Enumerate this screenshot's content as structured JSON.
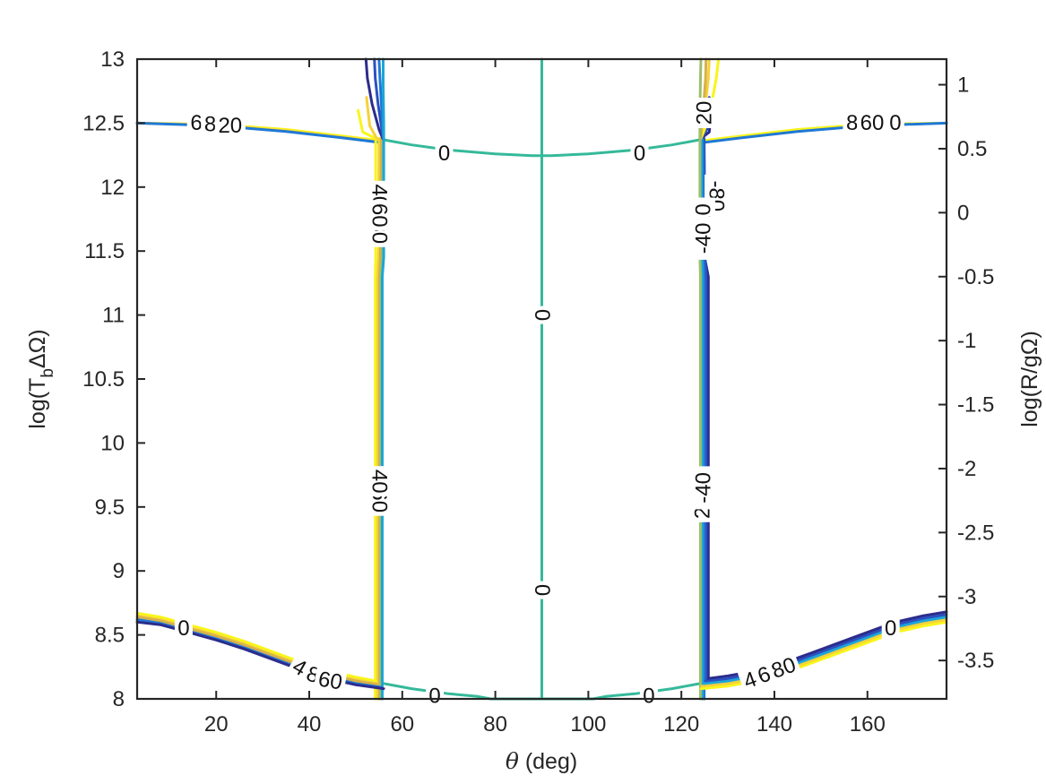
{
  "chart_data": {
    "type": "contour",
    "title": "",
    "xlabel": {
      "symbol": "θ",
      "rest": " (deg)"
    },
    "ylabel_left": {
      "pre": "log(T",
      "sub": "b",
      "post": "ΔΩ)"
    },
    "ylabel_right": "log(R/gΩ)",
    "xlim": [
      3,
      177
    ],
    "ylim_left": [
      8,
      13
    ],
    "ylim_right": [
      -3.8,
      1.2
    ],
    "x_ticks": [
      "20",
      "40",
      "60",
      "80",
      "100",
      "120",
      "140",
      "160"
    ],
    "x_tick_values": [
      20,
      40,
      60,
      80,
      100,
      120,
      140,
      160
    ],
    "y_left_ticks": [
      "8",
      "8.5",
      "9",
      "9.5",
      "10",
      "10.5",
      "11",
      "11.5",
      "12",
      "12.5",
      "13"
    ],
    "y_left_tick_values": [
      8,
      8.5,
      9,
      9.5,
      10,
      10.5,
      11,
      11.5,
      12,
      12.5,
      13
    ],
    "y_right_ticks": [
      "-3.5",
      "-3",
      "-2.5",
      "-2",
      "-1.5",
      "-1",
      "-0.5",
      "0",
      "0.5",
      "1"
    ],
    "y_right_tick_values": [
      -3.5,
      -3,
      -2.5,
      -2,
      -1.5,
      -1,
      -0.5,
      0,
      0.5,
      1
    ],
    "grid": false,
    "colors": {
      "level_neg80": "#2c2c8c",
      "level_neg60": "#2b50c0",
      "level_neg40": "#1f78d6",
      "level_neg20": "#1ba6d8",
      "level_0": "#35b99a",
      "level_20": "#9cbf6a",
      "level_40": "#d8b14a",
      "level_60": "#f5d23a",
      "level_80": "#f9f51a"
    },
    "series": [
      {
        "level": 0,
        "color_key": "level_0",
        "x": [
          90,
          90
        ],
        "y": [
          8,
          13
        ]
      },
      {
        "level": 0,
        "color_key": "level_0",
        "x": [
          56,
          62,
          70,
          80,
          88,
          92,
          100,
          110,
          118,
          124
        ],
        "y": [
          12.37,
          12.33,
          12.29,
          12.26,
          12.245,
          12.245,
          12.26,
          12.29,
          12.33,
          12.37
        ]
      },
      {
        "level": 0,
        "color_key": "level_0",
        "x": [
          56,
          62,
          70,
          76,
          79,
          101,
          104,
          110,
          118,
          124
        ],
        "y": [
          8.12,
          8.08,
          8.04,
          8.02,
          8.0,
          8.0,
          8.02,
          8.04,
          8.08,
          8.12
        ]
      },
      {
        "level": 80,
        "color_key": "level_80",
        "x": [
          3,
          20,
          35,
          47,
          56
        ],
        "y": [
          12.5,
          12.49,
          12.45,
          12.4,
          12.36
        ]
      },
      {
        "level": 60,
        "color_key": "level_60",
        "x": [
          3,
          20,
          35,
          47,
          56
        ],
        "y": [
          12.5,
          12.485,
          12.44,
          12.39,
          12.35
        ]
      },
      {
        "level": -40,
        "color_key": "level_neg40",
        "x": [
          3,
          20,
          35,
          47,
          56
        ],
        "y": [
          12.5,
          12.48,
          12.435,
          12.385,
          12.345
        ]
      },
      {
        "level": 80,
        "color_key": "level_80",
        "x": [
          124,
          133,
          145,
          160,
          177
        ],
        "y": [
          12.36,
          12.4,
          12.45,
          12.49,
          12.5
        ]
      },
      {
        "level": -40,
        "color_key": "level_neg40",
        "x": [
          124,
          133,
          145,
          160,
          177
        ],
        "y": [
          12.345,
          12.385,
          12.435,
          12.48,
          12.5
        ]
      },
      {
        "level": 80,
        "color_key": "level_80",
        "x": [
          54.2,
          54.2,
          54.3,
          54.3
        ],
        "y": [
          8,
          11.3,
          11.45,
          12.38
        ]
      },
      {
        "level": 60,
        "color_key": "level_60",
        "x": [
          54.7,
          54.7,
          54.9,
          55.0
        ],
        "y": [
          8,
          11.3,
          11.45,
          12.38
        ]
      },
      {
        "level": 40,
        "color_key": "level_40",
        "x": [
          55.1,
          55.1,
          55.3,
          55.5
        ],
        "y": [
          8,
          11.3,
          11.45,
          12.38
        ]
      },
      {
        "level": 20,
        "color_key": "level_20",
        "x": [
          55.4,
          55.4,
          55.7,
          55.9
        ],
        "y": [
          8,
          11.3,
          11.45,
          12.38
        ]
      },
      {
        "level": -20,
        "color_key": "level_neg20",
        "x": [
          55.7,
          55.7,
          56.0,
          56.0
        ],
        "y": [
          8,
          11.3,
          11.45,
          12.38
        ]
      },
      {
        "level": 80,
        "color_key": "level_80",
        "x": [
          54.3,
          51.5,
          50.5
        ],
        "y": [
          12.38,
          12.43,
          12.6
        ]
      },
      {
        "level": 60,
        "color_key": "level_60",
        "x": [
          54.5,
          53.0,
          52.3
        ],
        "y": [
          12.38,
          12.48,
          12.7
        ]
      },
      {
        "level": -80,
        "color_key": "level_neg80",
        "x": [
          55.8,
          55.0,
          53.5,
          52.5,
          52.2
        ],
        "y": [
          12.38,
          12.45,
          12.65,
          12.85,
          13.0
        ]
      },
      {
        "level": -60,
        "color_key": "level_neg60",
        "x": [
          55.9,
          55.6,
          54.8,
          54.2,
          54.0
        ],
        "y": [
          12.38,
          12.45,
          12.65,
          12.85,
          13.0
        ]
      },
      {
        "level": -40,
        "color_key": "level_neg40",
        "x": [
          56.0,
          55.8,
          55.5,
          55.2,
          55.0
        ],
        "y": [
          12.38,
          12.45,
          12.65,
          12.85,
          13.0
        ]
      },
      {
        "level": -20,
        "color_key": "level_neg20",
        "x": [
          56.0,
          56.0,
          55.9,
          55.9
        ],
        "y": [
          12.38,
          12.5,
          12.8,
          13.0
        ]
      },
      {
        "level": -80,
        "color_key": "level_neg80",
        "x": [
          125.8,
          125.8,
          125.0,
          124.2
        ],
        "y": [
          8.15,
          11.3,
          11.45,
          12.38
        ]
      },
      {
        "level": -60,
        "color_key": "level_neg60",
        "x": [
          125.3,
          125.3,
          125.1,
          124.9
        ],
        "y": [
          8.15,
          11.3,
          11.45,
          12.38
        ]
      },
      {
        "level": -40,
        "color_key": "level_neg40",
        "x": [
          124.9,
          124.9,
          124.7,
          124.6
        ],
        "y": [
          8,
          11.3,
          11.45,
          12.38
        ]
      },
      {
        "level": -20,
        "color_key": "level_neg20",
        "x": [
          124.5,
          124.5,
          124.4,
          124.3
        ],
        "y": [
          8,
          11.3,
          11.45,
          12.38
        ]
      },
      {
        "level": 20,
        "color_key": "level_20",
        "x": [
          124.1,
          124.1,
          124.0,
          124.0
        ],
        "y": [
          8,
          11.3,
          11.45,
          12.38
        ]
      },
      {
        "level": -80,
        "color_key": "level_neg80",
        "x": [
          124.2,
          126.0,
          126.5
        ],
        "y": [
          12.38,
          12.43,
          12.6
        ]
      },
      {
        "level": -60,
        "color_key": "level_neg60",
        "x": [
          124.3,
          125.5,
          126.0
        ],
        "y": [
          12.38,
          12.45,
          12.7
        ]
      },
      {
        "level": 80,
        "color_key": "level_80",
        "x": [
          124.2,
          125.0,
          126.5,
          127.5,
          128.0
        ],
        "y": [
          12.38,
          12.45,
          12.65,
          12.85,
          13.0
        ]
      },
      {
        "level": 60,
        "color_key": "level_60",
        "x": [
          124.1,
          124.4,
          125.2,
          125.8,
          126.0
        ],
        "y": [
          12.38,
          12.45,
          12.65,
          12.85,
          13.0
        ]
      },
      {
        "level": 40,
        "color_key": "level_40",
        "x": [
          124.1,
          124.3,
          124.8,
          125.2,
          125.3
        ],
        "y": [
          12.38,
          12.45,
          12.65,
          12.85,
          13.0
        ]
      },
      {
        "level": 20,
        "color_key": "level_20",
        "x": [
          124.0,
          124.0,
          124.1,
          124.2
        ],
        "y": [
          12.38,
          12.6,
          12.85,
          13.0
        ]
      },
      {
        "level": 80,
        "color_key": "level_80",
        "x": [
          3,
          8,
          14,
          20,
          26,
          32,
          38,
          44,
          50,
          54.3
        ],
        "y": [
          8.67,
          8.64,
          8.58,
          8.52,
          8.45,
          8.37,
          8.29,
          8.22,
          8.17,
          8.14
        ]
      },
      {
        "level": 60,
        "color_key": "level_60",
        "x": [
          3,
          8,
          14,
          20,
          26,
          32,
          38,
          44,
          50,
          54.6
        ],
        "y": [
          8.65,
          8.62,
          8.56,
          8.5,
          8.43,
          8.35,
          8.27,
          8.2,
          8.15,
          8.12
        ]
      },
      {
        "level": 40,
        "color_key": "level_40",
        "x": [
          3,
          8,
          14,
          20,
          26,
          32,
          38,
          44,
          50,
          55.0
        ],
        "y": [
          8.64,
          8.61,
          8.55,
          8.49,
          8.42,
          8.34,
          8.26,
          8.19,
          8.14,
          8.11
        ]
      },
      {
        "level": -40,
        "color_key": "level_neg40",
        "x": [
          3,
          8,
          14,
          20,
          26,
          32,
          38,
          44,
          50,
          55.5
        ],
        "y": [
          8.62,
          8.59,
          8.53,
          8.47,
          8.4,
          8.32,
          8.24,
          8.17,
          8.12,
          8.09
        ]
      },
      {
        "level": -80,
        "color_key": "level_neg80",
        "x": [
          3,
          8,
          14,
          20,
          26,
          32,
          38,
          44,
          50,
          56
        ],
        "y": [
          8.6,
          8.58,
          8.52,
          8.46,
          8.39,
          8.31,
          8.23,
          8.16,
          8.11,
          8.08
        ]
      },
      {
        "level": 80,
        "color_key": "level_80",
        "x": [
          124.2,
          130,
          136,
          142,
          148,
          154,
          160,
          166,
          172,
          177
        ],
        "y": [
          8.08,
          8.1,
          8.14,
          8.2,
          8.28,
          8.36,
          8.44,
          8.52,
          8.57,
          8.6
        ]
      },
      {
        "level": 60,
        "color_key": "level_60",
        "x": [
          124.4,
          130,
          136,
          142,
          148,
          154,
          160,
          166,
          172,
          177
        ],
        "y": [
          8.1,
          8.12,
          8.16,
          8.22,
          8.3,
          8.38,
          8.46,
          8.54,
          8.59,
          8.62
        ]
      },
      {
        "level": -20,
        "color_key": "level_neg20",
        "x": [
          124.8,
          130,
          136,
          142,
          148,
          154,
          160,
          166,
          172,
          177
        ],
        "y": [
          8.12,
          8.14,
          8.18,
          8.24,
          8.32,
          8.4,
          8.48,
          8.56,
          8.61,
          8.64
        ]
      },
      {
        "level": -60,
        "color_key": "level_neg60",
        "x": [
          125.2,
          130,
          136,
          142,
          148,
          154,
          160,
          166,
          172,
          177
        ],
        "y": [
          8.14,
          8.16,
          8.2,
          8.26,
          8.34,
          8.42,
          8.5,
          8.58,
          8.63,
          8.66
        ]
      },
      {
        "level": -80,
        "color_key": "level_neg80",
        "x": [
          125.8,
          130,
          136,
          142,
          148,
          154,
          160,
          166,
          172,
          177
        ],
        "y": [
          8.16,
          8.18,
          8.22,
          8.28,
          8.36,
          8.44,
          8.52,
          8.6,
          8.65,
          8.68
        ]
      }
    ],
    "annotations": [
      {
        "text": "0",
        "x": 69,
        "y": 12.26,
        "rotate": 0
      },
      {
        "text": "0",
        "x": 111,
        "y": 12.26,
        "rotate": 0
      },
      {
        "text": "0",
        "x": 90,
        "y": 11.0,
        "rotate": 90
      },
      {
        "text": "0",
        "x": 90,
        "y": 8.85,
        "rotate": 90
      },
      {
        "text": "0",
        "x": 67,
        "y": 8.02,
        "rotate": 0
      },
      {
        "text": "0",
        "x": 113,
        "y": 8.02,
        "rotate": 0
      },
      {
        "text": "0",
        "x": 13,
        "y": 8.55,
        "rotate": 0
      },
      {
        "text": "0",
        "x": 165,
        "y": 8.55,
        "rotate": 0
      },
      {
        "text": "20",
        "x": 125,
        "y": 12.58,
        "rotate": -90
      },
      {
        "text": "-80",
        "x": 127.5,
        "y": 11.93,
        "rotate": 90
      },
      {
        "text": "0",
        "x": 166,
        "y": 12.5,
        "rotate": 0
      },
      {
        "text": "80",
        "x": 55,
        "y": 11.65,
        "rotate": 90
      },
      {
        "text": "40",
        "x": 55,
        "y": 11.93,
        "rotate": 90
      },
      {
        "text": "60",
        "x": 55,
        "y": 11.78,
        "rotate": 90
      },
      {
        "text": "60",
        "x": 55,
        "y": 9.55,
        "rotate": 90
      },
      {
        "text": "40",
        "x": 55,
        "y": 9.7,
        "rotate": 90
      },
      {
        "text": "-20",
        "x": 124.8,
        "y": 11.75,
        "rotate": -90
      },
      {
        "text": "-40",
        "x": 124.8,
        "y": 11.6,
        "rotate": -90
      },
      {
        "text": "20",
        "x": 124.6,
        "y": 9.5,
        "rotate": -90
      },
      {
        "text": "-40",
        "x": 124.8,
        "y": 9.65,
        "rotate": -90
      },
      {
        "text": "60",
        "x": 17,
        "y": 12.5,
        "rotate": 0
      },
      {
        "text": "80",
        "x": 20,
        "y": 12.49,
        "rotate": 0
      },
      {
        "text": "20",
        "x": 23,
        "y": 12.48,
        "rotate": 0
      },
      {
        "text": "80",
        "x": 158,
        "y": 12.5,
        "rotate": 0
      },
      {
        "text": "60",
        "x": 161,
        "y": 12.5,
        "rotate": 0
      },
      {
        "text": "40",
        "x": 39,
        "y": 8.22,
        "rotate": 30
      },
      {
        "text": "80",
        "x": 42,
        "y": 8.17,
        "rotate": 20
      },
      {
        "text": "60",
        "x": 44.5,
        "y": 8.14,
        "rotate": 10
      },
      {
        "text": "40",
        "x": 136,
        "y": 8.16,
        "rotate": -20
      },
      {
        "text": "60",
        "x": 139,
        "y": 8.2,
        "rotate": -20
      },
      {
        "text": "80",
        "x": 142,
        "y": 8.24,
        "rotate": -20
      }
    ]
  }
}
